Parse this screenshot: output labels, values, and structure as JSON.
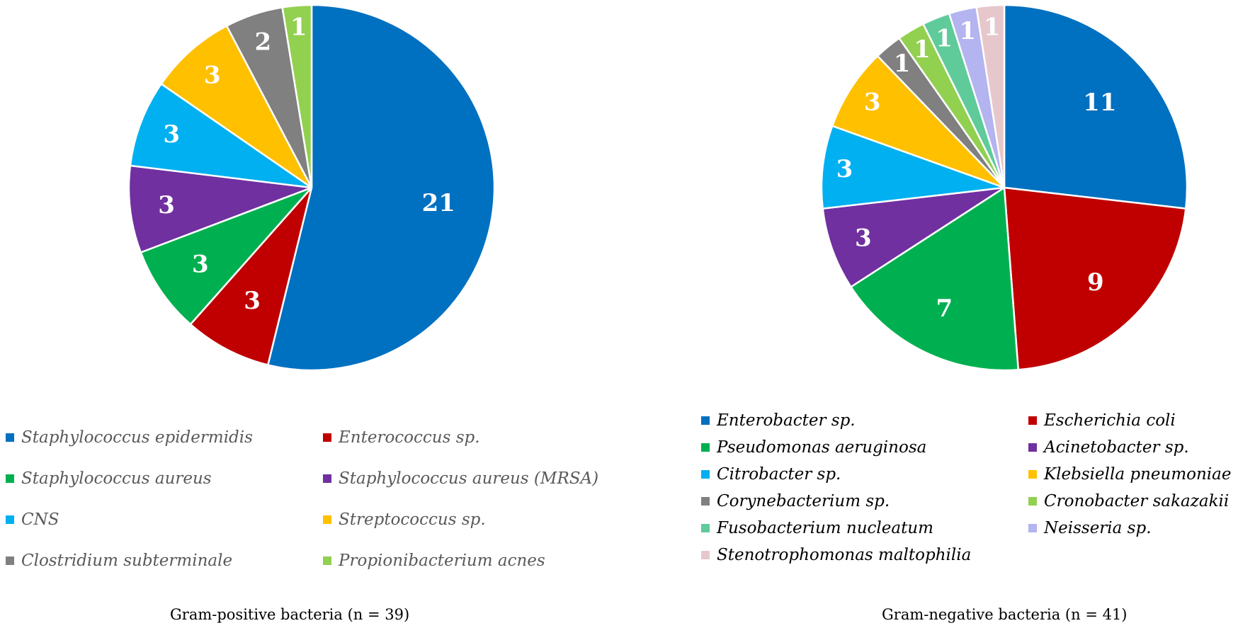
{
  "chart_data": [
    {
      "type": "pie",
      "title": "Gram-positive bacteria (n = 39)",
      "legend_position": "bottom",
      "slices": [
        {
          "label": "Staphylococcus epidermidis",
          "value": 21,
          "color": "#0070C0"
        },
        {
          "label": "Enterococcus sp.",
          "value": 3,
          "color": "#C00000"
        },
        {
          "label": "Staphylococcus aureus",
          "value": 3,
          "color": "#00B050"
        },
        {
          "label": "Staphylococcus aureus (MRSA)",
          "value": 3,
          "color": "#7030A0"
        },
        {
          "label": "CNS",
          "value": 3,
          "color": "#00B0F0"
        },
        {
          "label": "Streptococcus sp.",
          "value": 3,
          "color": "#FFC000"
        },
        {
          "label": "Clostridium subterminale",
          "value": 2,
          "color": "#808080"
        },
        {
          "label": "Propionibacterium acnes",
          "value": 1,
          "color": "#92D050"
        }
      ]
    },
    {
      "type": "pie",
      "title": "Gram-negative bacteria (n = 41)",
      "legend_position": "bottom",
      "slices": [
        {
          "label": "Enterobacter sp.",
          "value": 11,
          "color": "#0070C0"
        },
        {
          "label": "Escherichia coli",
          "value": 9,
          "color": "#C00000"
        },
        {
          "label": "Pseudomonas aeruginosa",
          "value": 7,
          "color": "#00B050"
        },
        {
          "label": "Acinetobacter sp.",
          "value": 3,
          "color": "#7030A0"
        },
        {
          "label": "Citrobacter sp.",
          "value": 3,
          "color": "#00B0F0"
        },
        {
          "label": "Klebsiella pneumoniae",
          "value": 3,
          "color": "#FFC000"
        },
        {
          "label": "Corynebacterium sp.",
          "value": 1,
          "color": "#808080"
        },
        {
          "label": "Cronobacter sakazakii",
          "value": 1,
          "color": "#92D050"
        },
        {
          "label": "Fusobacterium nucleatum",
          "value": 1,
          "color": "#5FCB9A"
        },
        {
          "label": "Neisseria sp.",
          "value": 1,
          "color": "#B4B4F0"
        },
        {
          "label": "Stenotrophomonas maltophilia",
          "value": 1,
          "color": "#E6C8CC"
        }
      ]
    }
  ]
}
